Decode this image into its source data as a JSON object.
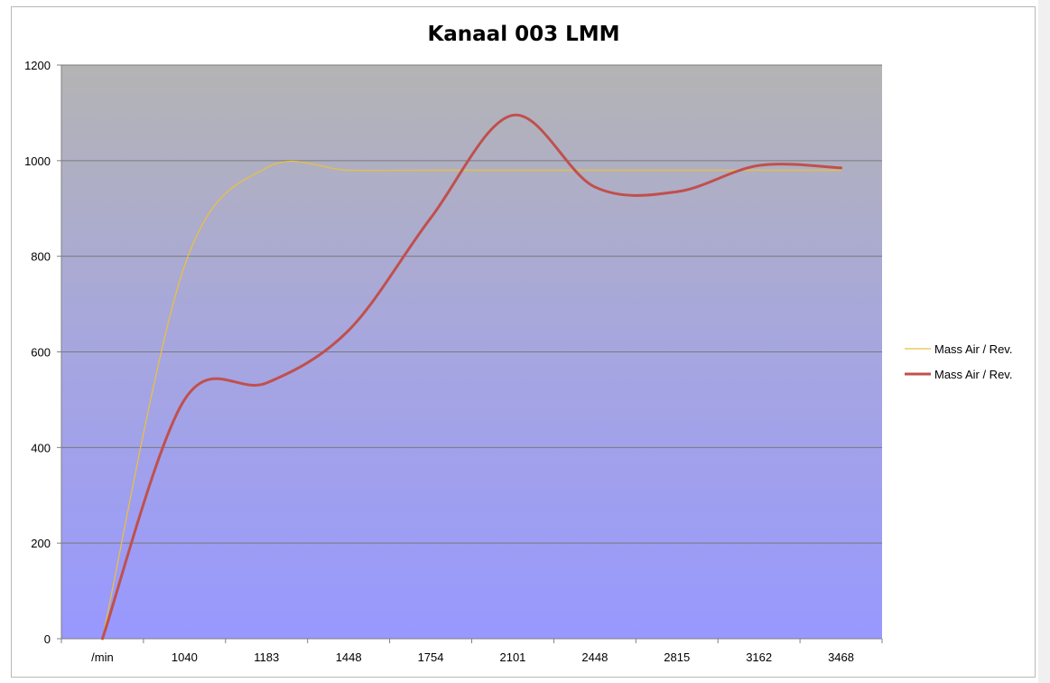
{
  "chart_data": {
    "type": "line",
    "title": "Kanaal 003 LMM",
    "categories": [
      "/min",
      "1040",
      "1183",
      "1448",
      "1754",
      "2101",
      "2448",
      "2815",
      "3162",
      "3468"
    ],
    "ylim": [
      0,
      1200
    ],
    "yticks": [
      0,
      200,
      400,
      600,
      800,
      1000,
      1200
    ],
    "grid": true,
    "legend_position": "right",
    "series": [
      {
        "name": "Mass Air / Rev.",
        "color": "#e8c040",
        "values": [
          0,
          780,
          985,
          980,
          980,
          980,
          980,
          980,
          980,
          980
        ]
      },
      {
        "name": "Mass Air / Rev.",
        "color": "#c0504d",
        "values": [
          0,
          500,
          535,
          645,
          880,
          1095,
          945,
          935,
          990,
          985
        ]
      }
    ]
  }
}
